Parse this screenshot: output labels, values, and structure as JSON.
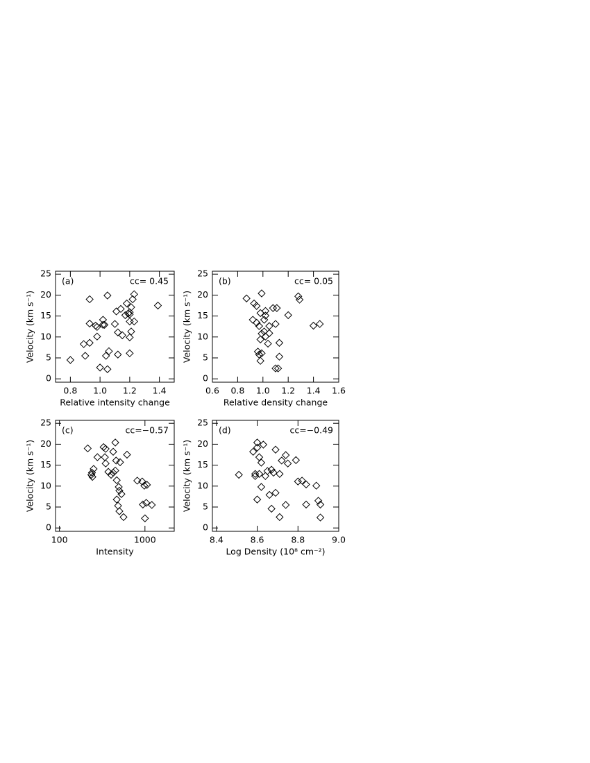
{
  "chart_data": [
    {
      "type": "scatter",
      "panel": "(a)",
      "annotation": "cc= 0.45",
      "xlabel": "Relative intensity change",
      "ylabel": "Velocity (km s⁻¹)",
      "color": "#000000",
      "xlim": [
        0.7,
        1.5
      ],
      "xticks": [
        0.8,
        {
          "value": 1,
          "label": "1.0"
        },
        1.2,
        1.4
      ],
      "ylim": [
        -0.8,
        25.7
      ],
      "yticks": [
        0,
        5,
        10,
        15,
        20,
        25
      ],
      "x": [
        0.8,
        0.89,
        0.9,
        0.93,
        0.93,
        0.93,
        0.97,
        0.98,
        0.98,
        1.0,
        1.02,
        1.02,
        1.03,
        1.04,
        1.05,
        1.05,
        1.06,
        1.1,
        1.11,
        1.12,
        1.12,
        1.14,
        1.15,
        1.17,
        1.18,
        1.19,
        1.2,
        1.2,
        1.2,
        1.21,
        1.2,
        1.2,
        1.21,
        1.23,
        1.22,
        1.23,
        1.39
      ],
      "values": [
        4.5,
        8.3,
        5.5,
        19.0,
        13.2,
        8.6,
        12.7,
        12.4,
        10.1,
        2.7,
        14.1,
        12.9,
        12.9,
        5.5,
        2.3,
        19.9,
        6.6,
        13.1,
        16.1,
        5.8,
        11.1,
        16.7,
        10.4,
        15.2,
        18.0,
        15.6,
        15.4,
        6.1,
        9.9,
        11.3,
        13.7,
        15.9,
        17.1,
        13.7,
        19.0,
        20.2,
        17.5
      ]
    },
    {
      "type": "scatter",
      "panel": "(b)",
      "annotation": "cc= 0.05",
      "xlabel": "Relative density change",
      "ylabel": "Velocity (km s⁻¹)",
      "color": "#000000",
      "xlim": [
        0.6,
        1.6
      ],
      "xticks": [
        0.6,
        0.8,
        {
          "value": 1,
          "label": "1.0"
        },
        1.2,
        1.4,
        1.6
      ],
      "ylim": [
        -0.8,
        25.7
      ],
      "yticks": [
        0,
        5,
        10,
        15,
        20,
        25
      ],
      "x": [
        0.87,
        0.93,
        0.95,
        0.92,
        0.95,
        0.97,
        0.98,
        0.99,
        0.99,
        0.98,
        1.02,
        1.02,
        1.01,
        1.01,
        1.02,
        1.04,
        1.05,
        0.96,
        0.97,
        0.98,
        0.99,
        1.05,
        1.08,
        1.1,
        1.11,
        1.13,
        1.13,
        1.1,
        1.12,
        1.2,
        1.28,
        1.29,
        1.4,
        1.45
      ],
      "values": [
        19.2,
        18.0,
        17.4,
        14.1,
        13.4,
        12.6,
        15.7,
        20.4,
        10.8,
        9.4,
        16.2,
        15.1,
        14.1,
        11.3,
        10.1,
        8.4,
        12.6,
        6.5,
        5.8,
        4.3,
        6.1,
        10.9,
        16.9,
        13.1,
        16.9,
        8.6,
        5.3,
        2.5,
        2.5,
        15.2,
        19.7,
        18.9,
        12.7,
        13.1
      ]
    },
    {
      "type": "scatter",
      "panel": "(c)",
      "annotation": "cc=−0.57",
      "xlabel": "Intensity",
      "ylabel": "Velocity (km s⁻¹)",
      "color": "#000000",
      "xscale": "log",
      "xlim": [
        90,
        2200
      ],
      "xticks": [
        100,
        1000
      ],
      "ylim": [
        -0.8,
        25.7
      ],
      "yticks": [
        0,
        5,
        10,
        15,
        20,
        25
      ],
      "x": [
        214,
        236,
        240,
        243,
        251,
        278,
        328,
        340,
        347,
        347,
        373,
        402,
        425,
        425,
        450,
        450,
        460,
        468,
        494,
        512,
        468,
        485,
        502,
        502,
        531,
        562,
        617,
        813,
        928,
        983,
        1055,
        945,
        1000,
        1035,
        1204
      ],
      "values": [
        19.0,
        12.7,
        13.2,
        12.2,
        14.1,
        16.9,
        19.3,
        16.9,
        18.9,
        15.4,
        13.4,
        12.7,
        13.2,
        18.2,
        20.4,
        13.7,
        16.1,
        11.4,
        9.8,
        15.7,
        6.8,
        5.3,
        4.0,
        8.9,
        8.1,
        2.6,
        17.5,
        11.3,
        11.1,
        10.1,
        10.3,
        5.6,
        2.3,
        6.0,
        5.5
      ]
    },
    {
      "type": "scatter",
      "panel": "(d)",
      "annotation": "cc=−0.49",
      "xlabel": "Log Density (10⁸ cm⁻²)",
      "ylabel": "Velocity (km s⁻¹)",
      "color": "#000000",
      "xlim": [
        8.38,
        9.0
      ],
      "xticks": [
        8.4,
        8.6,
        8.8,
        {
          "value": 9,
          "label": "9.0"
        }
      ],
      "ylim": [
        -0.8,
        25.7
      ],
      "yticks": [
        0,
        5,
        10,
        15,
        20,
        25
      ],
      "x": [
        8.51,
        8.58,
        8.59,
        8.59,
        8.6,
        8.6,
        8.6,
        8.61,
        8.61,
        8.62,
        8.62,
        8.63,
        8.64,
        8.65,
        8.66,
        8.67,
        8.67,
        8.68,
        8.69,
        8.69,
        8.71,
        8.71,
        8.72,
        8.74,
        8.74,
        8.75,
        8.79,
        8.8,
        8.82,
        8.84,
        8.84,
        8.89,
        8.9,
        8.91,
        8.91
      ],
      "values": [
        12.7,
        18.2,
        12.9,
        12.4,
        20.4,
        19.2,
        6.8,
        12.9,
        16.9,
        15.6,
        9.8,
        19.9,
        12.4,
        13.6,
        7.9,
        4.6,
        13.9,
        13.2,
        8.4,
        18.7,
        12.9,
        2.6,
        16.1,
        5.5,
        17.4,
        15.4,
        16.2,
        11.1,
        11.3,
        10.4,
        5.6,
        10.1,
        6.5,
        5.6,
        2.5
      ]
    }
  ]
}
